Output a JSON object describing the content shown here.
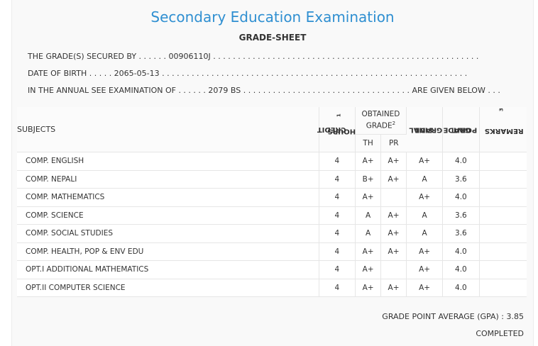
{
  "header": {
    "title": "Secondary Education Examination",
    "subtitle": "GRADE-SHEET"
  },
  "info": {
    "secured_by": "THE GRADE(S) SECURED BY . . . . . . 00906110J . . . . . . . . . . . . . . . . . . . . . . . . . . . . . . . . . . . . . . . . . . . . . . . . . . . . . .",
    "dob": "DATE OF BIRTH . . . . . 2065-05-13 . . . . . . . . . . . . . . . . . . . . . . . . . . . . . . . . . . . . . . . . . . . . . . . . . . . . . . . . . . . . . .",
    "exam": "IN THE ANNUAL SEE EXAMINATION OF . . . . . . 2079 BS . . . . . . . . . . . . . . . . . . . . . . . . . . . . . . . . . . ARE GIVEN BELOW . . ."
  },
  "table": {
    "headers": {
      "subjects": "SUBJECTS",
      "credit_hours_line1": "CREDIT",
      "credit_hours_line2": "HOURS",
      "credit_hours_sup": "1",
      "obtained_line1": "OBTAINED",
      "obtained_line2": "GRADE",
      "obtained_sup": "2",
      "th": "TH",
      "pr": "PR",
      "final_line1": "FINAL",
      "final_line2": "GRADE",
      "grade_point_line1": "GRADE",
      "grade_point_line2": "POINT",
      "remarks": "REMARKS",
      "remarks_sup": "3"
    },
    "rows": [
      {
        "subject": "COMP. ENGLISH",
        "credit": "4",
        "th": "A+",
        "pr": "A+",
        "final": "A+",
        "point": "4.0",
        "remarks": ""
      },
      {
        "subject": "COMP. NEPALI",
        "credit": "4",
        "th": "B+",
        "pr": "A+",
        "final": "A",
        "point": "3.6",
        "remarks": ""
      },
      {
        "subject": "COMP. MATHEMATICS",
        "credit": "4",
        "th": "A+",
        "pr": "",
        "final": "A+",
        "point": "4.0",
        "remarks": ""
      },
      {
        "subject": "COMP. SCIENCE",
        "credit": "4",
        "th": "A",
        "pr": "A+",
        "final": "A",
        "point": "3.6",
        "remarks": ""
      },
      {
        "subject": "COMP. SOCIAL STUDIES",
        "credit": "4",
        "th": "A",
        "pr": "A+",
        "final": "A",
        "point": "3.6",
        "remarks": ""
      },
      {
        "subject": "COMP. HEALTH, POP & ENV EDU",
        "credit": "4",
        "th": "A+",
        "pr": "A+",
        "final": "A+",
        "point": "4.0",
        "remarks": ""
      },
      {
        "subject": "OPT.I ADDITIONAL MATHEMATICS",
        "credit": "4",
        "th": "A+",
        "pr": "",
        "final": "A+",
        "point": "4.0",
        "remarks": ""
      },
      {
        "subject": "OPT.II COMPUTER SCIENCE",
        "credit": "4",
        "th": "A+",
        "pr": "A+",
        "final": "A+",
        "point": "4.0",
        "remarks": ""
      }
    ]
  },
  "summary": {
    "gpa": "GRADE POINT AVERAGE (GPA) : 3.85",
    "status": "COMPLETED"
  }
}
